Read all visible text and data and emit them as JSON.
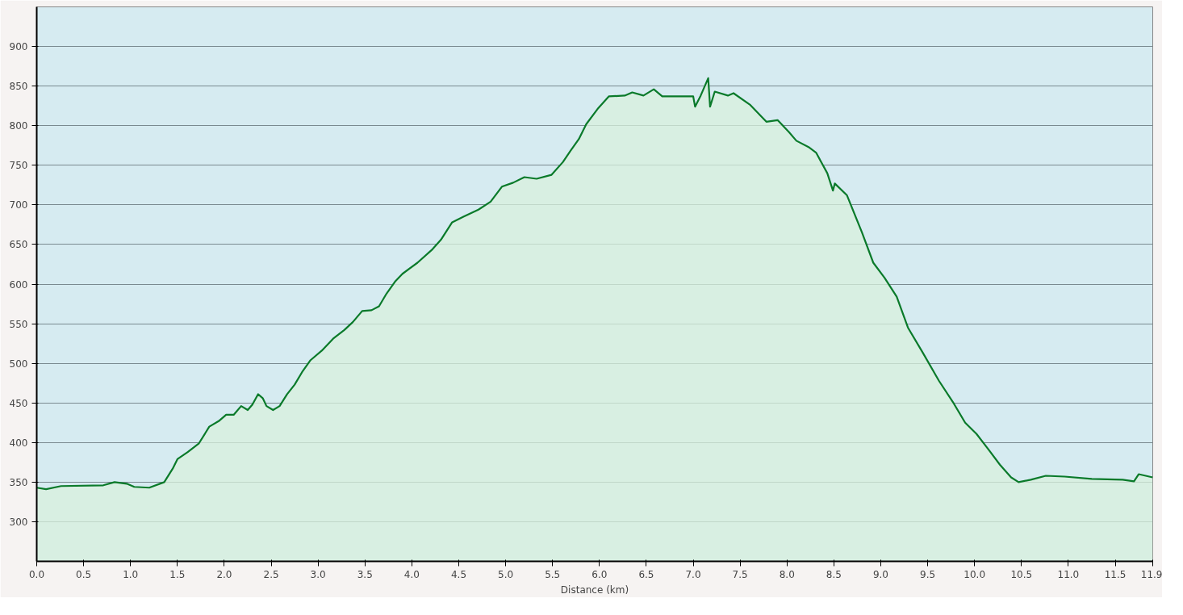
{
  "chart_data": {
    "type": "area",
    "xlabel": "Distance (km)",
    "x": [
      0.0,
      0.1,
      0.26,
      0.71,
      0.83,
      0.96,
      1.04,
      1.2,
      1.36,
      1.45,
      1.5,
      1.61,
      1.73,
      1.84,
      1.94,
      2.02,
      2.1,
      2.18,
      2.25,
      2.3,
      2.36,
      2.41,
      2.45,
      2.52,
      2.59,
      2.67,
      2.75,
      2.83,
      2.92,
      3.04,
      3.16,
      3.28,
      3.37,
      3.47,
      3.57,
      3.65,
      3.73,
      3.82,
      3.9,
      4.06,
      4.22,
      4.31,
      4.43,
      4.55,
      4.71,
      4.84,
      4.96,
      5.08,
      5.2,
      5.33,
      5.49,
      5.61,
      5.69,
      5.78,
      5.86,
      5.98,
      6.1,
      6.27,
      6.35,
      6.47,
      6.58,
      6.67,
      7.0,
      7.02,
      7.08,
      7.16,
      7.18,
      7.23,
      7.37,
      7.43,
      7.61,
      7.78,
      7.9,
      8.02,
      8.1,
      8.23,
      8.31,
      8.43,
      8.49,
      8.51,
      8.64,
      8.8,
      8.92,
      9.04,
      9.17,
      9.29,
      9.45,
      9.62,
      9.78,
      9.9,
      10.02,
      10.15,
      10.27,
      10.39,
      10.47,
      10.6,
      10.76,
      10.96,
      11.25,
      11.58,
      11.7,
      11.75,
      11.9
    ],
    "series": [
      {
        "color": "#0a7a2a",
        "values": [
          343,
          341,
          345,
          346,
          350,
          348,
          344,
          343,
          350,
          367,
          379,
          388,
          399,
          420,
          427,
          435,
          435,
          446,
          441,
          448,
          461,
          456,
          446,
          441,
          446,
          461,
          473,
          489,
          504,
          516,
          531,
          542,
          552,
          566,
          567,
          572,
          588,
          603,
          613,
          627,
          644,
          656,
          678,
          685,
          694,
          704,
          723,
          728,
          735,
          733,
          738,
          754,
          768,
          783,
          802,
          821,
          837,
          838,
          842,
          838,
          846,
          837,
          837,
          824,
          838,
          860,
          824,
          843,
          838,
          841,
          826,
          805,
          807,
          792,
          781,
          773,
          766,
          740,
          718,
          727,
          712,
          665,
          627,
          608,
          584,
          545,
          513,
          478,
          449,
          425,
          411,
          391,
          372,
          356,
          350,
          353,
          358,
          357,
          354,
          353,
          351,
          360,
          356
        ]
      }
    ],
    "xlim": [
      0,
      11.9
    ],
    "ylim": [
      250,
      950
    ],
    "xticks": [
      {
        "value": 0,
        "label": "0.0"
      },
      0.5,
      {
        "value": 1,
        "label": "1.0"
      },
      1.5,
      {
        "value": 2,
        "label": "2.0"
      },
      2.5,
      {
        "value": 3,
        "label": "3.0"
      },
      3.5,
      {
        "value": 4,
        "label": "4.0"
      },
      4.5,
      {
        "value": 5,
        "label": "5.0"
      },
      5.5,
      {
        "value": 6,
        "label": "6.0"
      },
      6.5,
      {
        "value": 7,
        "label": "7.0"
      },
      7.5,
      {
        "value": 8,
        "label": "8.0"
      },
      8.5,
      {
        "value": 9,
        "label": "9.0"
      },
      9.5,
      {
        "value": 10,
        "label": "10.0"
      },
      10.5,
      {
        "value": 11,
        "label": "11.0"
      },
      11.5,
      11.9
    ],
    "yticks": [
      300,
      350,
      400,
      450,
      500,
      550,
      600,
      650,
      700,
      750,
      800,
      850,
      900
    ],
    "grid": "y"
  }
}
